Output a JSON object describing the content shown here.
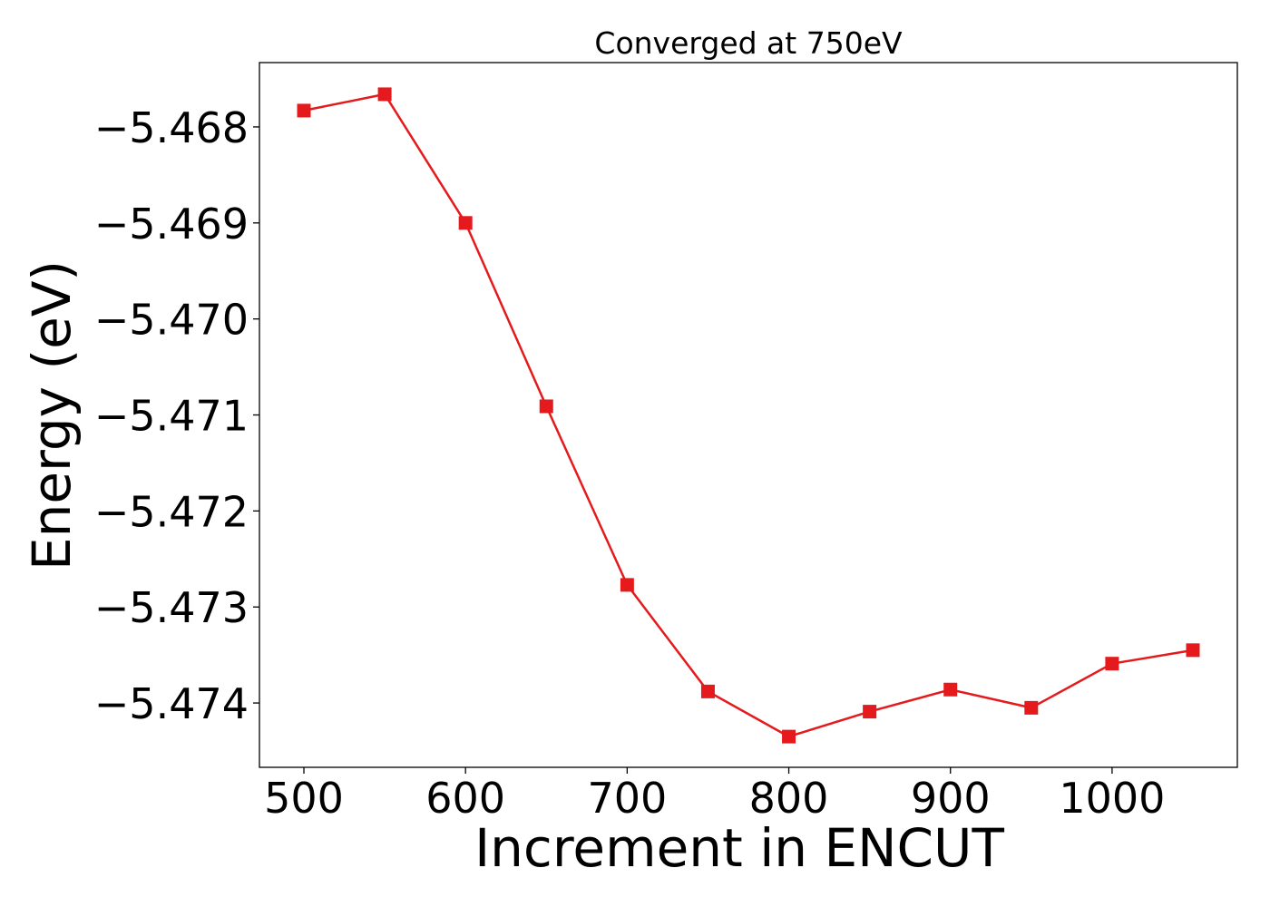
{
  "chart_data": {
    "type": "line",
    "title": "Converged at 750eV",
    "xlabel": "Increment in ENCUT",
    "ylabel": "Energy (eV)",
    "x": [
      500,
      550,
      600,
      650,
      700,
      750,
      800,
      850,
      900,
      950,
      1000,
      1050
    ],
    "series": [
      {
        "values": [
          -5.46783,
          -5.46766,
          -5.469,
          -5.47091,
          -5.47277,
          -5.47388,
          -5.47435,
          -5.47409,
          -5.47386,
          -5.47405,
          -5.47359,
          -5.47345
        ]
      }
    ],
    "xlim": [
      472.5,
      1077.5
    ],
    "ylim": [
      -5.47467,
      -5.46733
    ],
    "xticks": [
      500,
      600,
      700,
      800,
      900,
      1000
    ],
    "xtick_labels": [
      "500",
      "600",
      "700",
      "800",
      "900",
      "1000"
    ],
    "yticks": [
      -5.474,
      -5.473,
      -5.472,
      -5.471,
      -5.47,
      -5.469,
      -5.468
    ],
    "ytick_labels": [
      "−5.474",
      "−5.473",
      "−5.472",
      "−5.471",
      "−5.470",
      "−5.469",
      "−5.468"
    ],
    "marker": "square",
    "color": "#e41a1c",
    "grid": false,
    "legend": false
  }
}
